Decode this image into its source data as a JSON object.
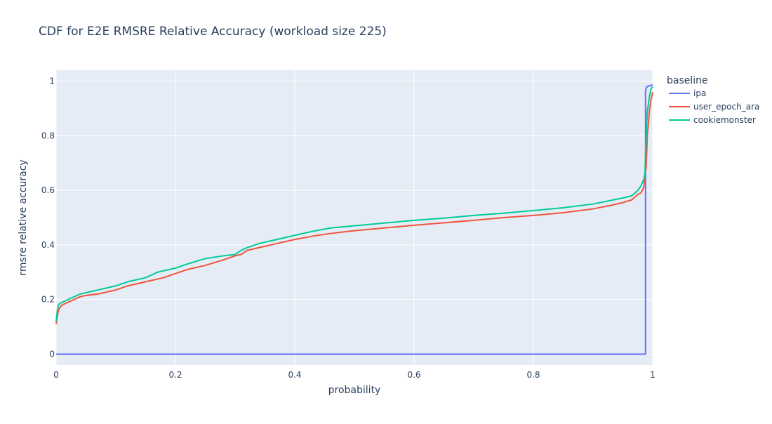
{
  "chart_data": {
    "type": "line",
    "title": "CDF for E2E RMSRE Relative Accuracy (workload size 225)",
    "xlabel": "probability",
    "ylabel": "rmsre relative accuracy",
    "xlim": [
      0,
      1
    ],
    "ylim": [
      -0.04,
      1.04
    ],
    "xticks": [
      0,
      0.2,
      0.4,
      0.6,
      0.8,
      1
    ],
    "xtick_labels": [
      "0",
      "0.2",
      "0.4",
      "0.6",
      "0.8",
      "1"
    ],
    "yticks": [
      0,
      0.2,
      0.4,
      0.6,
      0.8,
      1
    ],
    "ytick_labels": [
      "0",
      "0.2",
      "0.4",
      "0.6",
      "0.8",
      "1"
    ],
    "grid": true,
    "legend_title": "baseline",
    "legend_position": "right",
    "plot_background": "#E5ECF6",
    "series": [
      {
        "name": "ipa",
        "color": "#636EFA",
        "x": [
          0,
          0.988,
          0.988,
          0.989,
          0.991,
          0.993,
          0.996,
          1.0
        ],
        "y": [
          0,
          0,
          0.96,
          0.975,
          0.98,
          0.982,
          0.984,
          0.986
        ]
      },
      {
        "name": "user_epoch_ara",
        "color": "#EF553B",
        "x": [
          0,
          0.002,
          0.004,
          0.006,
          0.01,
          0.02,
          0.03,
          0.04,
          0.05,
          0.07,
          0.1,
          0.12,
          0.15,
          0.18,
          0.2,
          0.22,
          0.25,
          0.28,
          0.3,
          0.31,
          0.32,
          0.34,
          0.37,
          0.4,
          0.43,
          0.46,
          0.5,
          0.55,
          0.6,
          0.65,
          0.7,
          0.75,
          0.8,
          0.85,
          0.9,
          0.93,
          0.95,
          0.965,
          0.975,
          0.98,
          0.985,
          0.987,
          0.989,
          0.991,
          0.993,
          0.995,
          0.997,
          1.0
        ],
        "y": [
          0.11,
          0.14,
          0.16,
          0.17,
          0.18,
          0.19,
          0.2,
          0.21,
          0.215,
          0.22,
          0.235,
          0.25,
          0.265,
          0.28,
          0.295,
          0.31,
          0.325,
          0.345,
          0.36,
          0.365,
          0.38,
          0.39,
          0.405,
          0.42,
          0.432,
          0.442,
          0.452,
          0.462,
          0.472,
          0.481,
          0.49,
          0.5,
          0.508,
          0.518,
          0.532,
          0.545,
          0.555,
          0.565,
          0.585,
          0.59,
          0.61,
          0.66,
          0.68,
          0.8,
          0.85,
          0.9,
          0.93,
          0.96
        ]
      },
      {
        "name": "cookiemonster",
        "color": "#00CC96",
        "x": [
          0,
          0.002,
          0.004,
          0.006,
          0.01,
          0.02,
          0.03,
          0.04,
          0.05,
          0.07,
          0.1,
          0.12,
          0.15,
          0.17,
          0.2,
          0.22,
          0.25,
          0.28,
          0.3,
          0.31,
          0.32,
          0.34,
          0.37,
          0.4,
          0.43,
          0.46,
          0.5,
          0.55,
          0.6,
          0.65,
          0.7,
          0.75,
          0.8,
          0.85,
          0.9,
          0.93,
          0.95,
          0.965,
          0.975,
          0.98,
          0.985,
          0.987,
          0.989,
          0.991,
          0.993,
          0.995,
          0.997,
          1.0
        ],
        "y": [
          0.12,
          0.16,
          0.18,
          0.185,
          0.19,
          0.2,
          0.21,
          0.22,
          0.225,
          0.235,
          0.25,
          0.265,
          0.28,
          0.3,
          0.315,
          0.33,
          0.35,
          0.36,
          0.365,
          0.38,
          0.39,
          0.405,
          0.42,
          0.435,
          0.45,
          0.462,
          0.47,
          0.48,
          0.49,
          0.498,
          0.508,
          0.516,
          0.526,
          0.536,
          0.55,
          0.563,
          0.572,
          0.58,
          0.6,
          0.615,
          0.64,
          0.66,
          0.8,
          0.89,
          0.92,
          0.95,
          0.97,
          0.98
        ]
      }
    ]
  }
}
